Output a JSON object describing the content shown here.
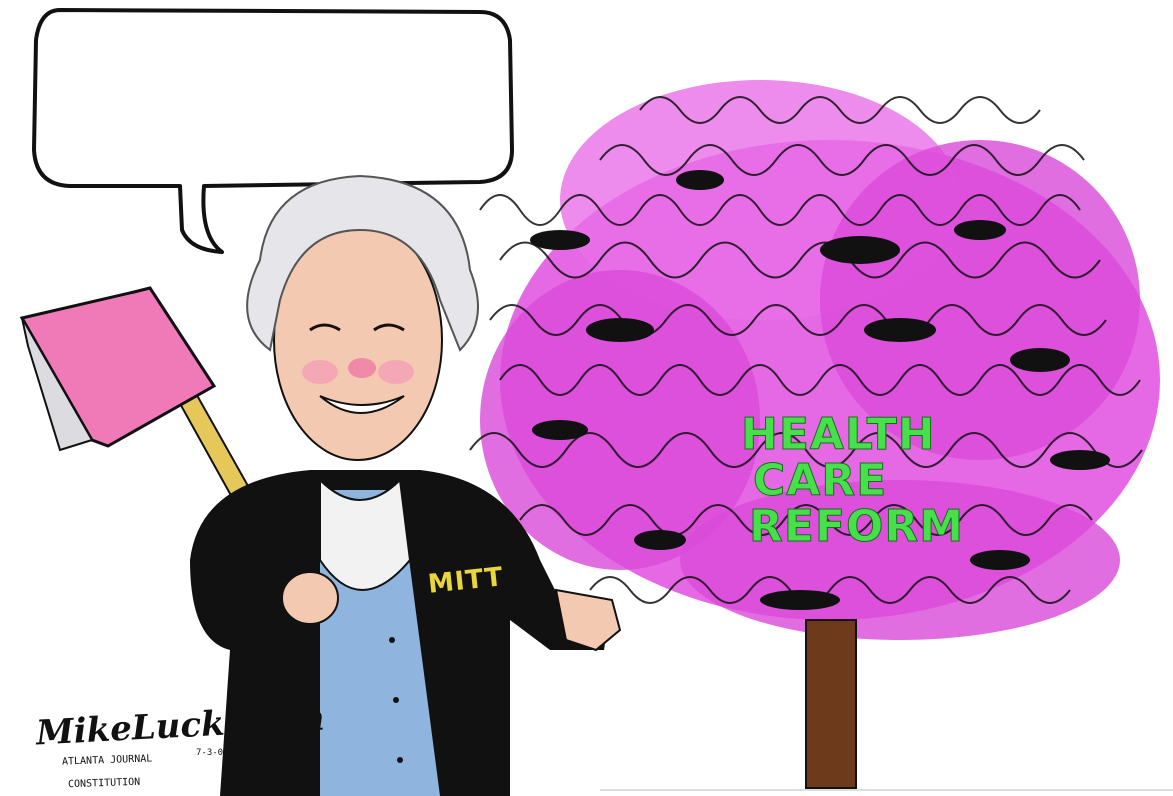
{
  "speech_bubble": {
    "text": ""
  },
  "tree": {
    "label_lines": [
      "HEALTH",
      "CARE",
      "REFORM"
    ],
    "label_color": "#46e04a",
    "blossom_color": "#e04fe0"
  },
  "character": {
    "sleeve_label": "MITT"
  },
  "signature": {
    "name": "MikeLuckovich",
    "publication_line1": "ATLANTA JOURNAL",
    "publication_line2": "CONSTITUTION",
    "date": "7-3-07"
  },
  "colors": {
    "axe_head": "#f07ab8",
    "vest": "#8fb4dd",
    "coat": "#111111",
    "skin": "#f4c9b2",
    "hair": "#e6e6ea",
    "trunk": "#6e3a1c"
  }
}
